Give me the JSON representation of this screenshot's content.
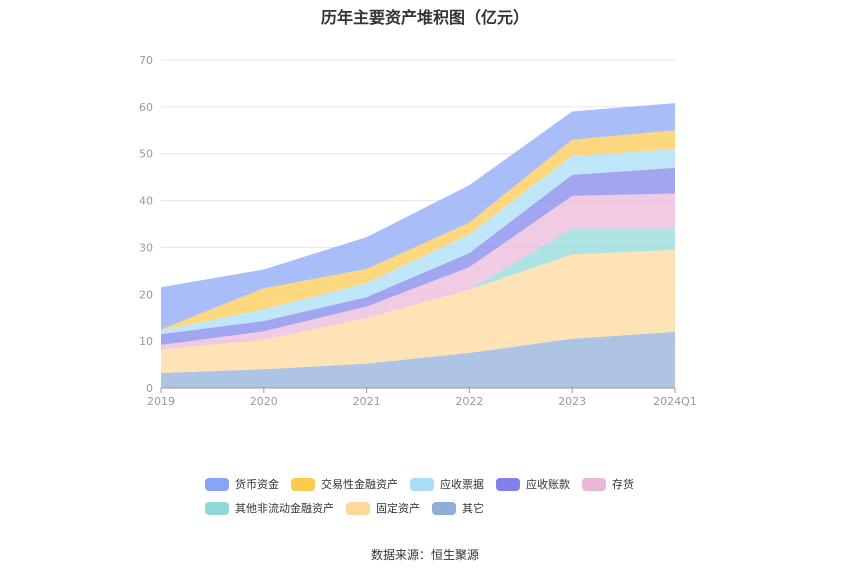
{
  "chart_data": {
    "type": "area",
    "stacked": true,
    "title": "历年主要资产堆积图（亿元）",
    "categories": [
      "2019",
      "2020",
      "2021",
      "2022",
      "2023",
      "2024Q1"
    ],
    "ylim": [
      0,
      70
    ],
    "yticks": [
      0,
      10,
      20,
      30,
      40,
      50,
      60,
      70
    ],
    "grid": true,
    "legend_position": "bottom",
    "series": [
      {
        "name": "其它",
        "color": "#8fadd9",
        "values": [
          3.2,
          4.0,
          5.2,
          7.5,
          10.5,
          12.0
        ]
      },
      {
        "name": "固定资产",
        "color": "#fcd89a",
        "values": [
          5.0,
          6.3,
          9.7,
          13.5,
          18.0,
          17.5
        ]
      },
      {
        "name": "其他非流动金融资产",
        "color": "#8fd8d8",
        "values": [
          0,
          0,
          0,
          0,
          5.5,
          4.5
        ]
      },
      {
        "name": "存货",
        "color": "#eab7d8",
        "values": [
          1.0,
          1.8,
          2.5,
          4.8,
          7.0,
          7.5
        ]
      },
      {
        "name": "应收账款",
        "color": "#7e82ea",
        "values": [
          2.3,
          2.2,
          2.0,
          3.0,
          4.5,
          5.5
        ]
      },
      {
        "name": "应收票据",
        "color": "#a8dcf7",
        "values": [
          0.8,
          2.5,
          3.0,
          4.0,
          4.0,
          4.0
        ]
      },
      {
        "name": "交易性金融资产",
        "color": "#fdc94e",
        "values": [
          0.2,
          4.5,
          3.0,
          2.5,
          3.5,
          4.0
        ]
      },
      {
        "name": "货币资金",
        "color": "#88a5f5",
        "values": [
          9.0,
          4.0,
          6.8,
          8.0,
          6.0,
          5.8
        ]
      }
    ]
  },
  "legend": {
    "rows": [
      [
        {
          "label": "货币资金",
          "color": "#88a5f5"
        },
        {
          "label": "交易性金融资产",
          "color": "#fdc94e"
        },
        {
          "label": "应收票据",
          "color": "#a8dcf7"
        },
        {
          "label": "应收账款",
          "color": "#7e82ea"
        },
        {
          "label": "存货",
          "color": "#eab7d8"
        }
      ],
      [
        {
          "label": "其他非流动金融资产",
          "color": "#8fd8d8"
        },
        {
          "label": "固定资产",
          "color": "#fcd89a"
        },
        {
          "label": "其它",
          "color": "#8fadd9"
        }
      ]
    ]
  },
  "source": "数据来源：恒生聚源"
}
